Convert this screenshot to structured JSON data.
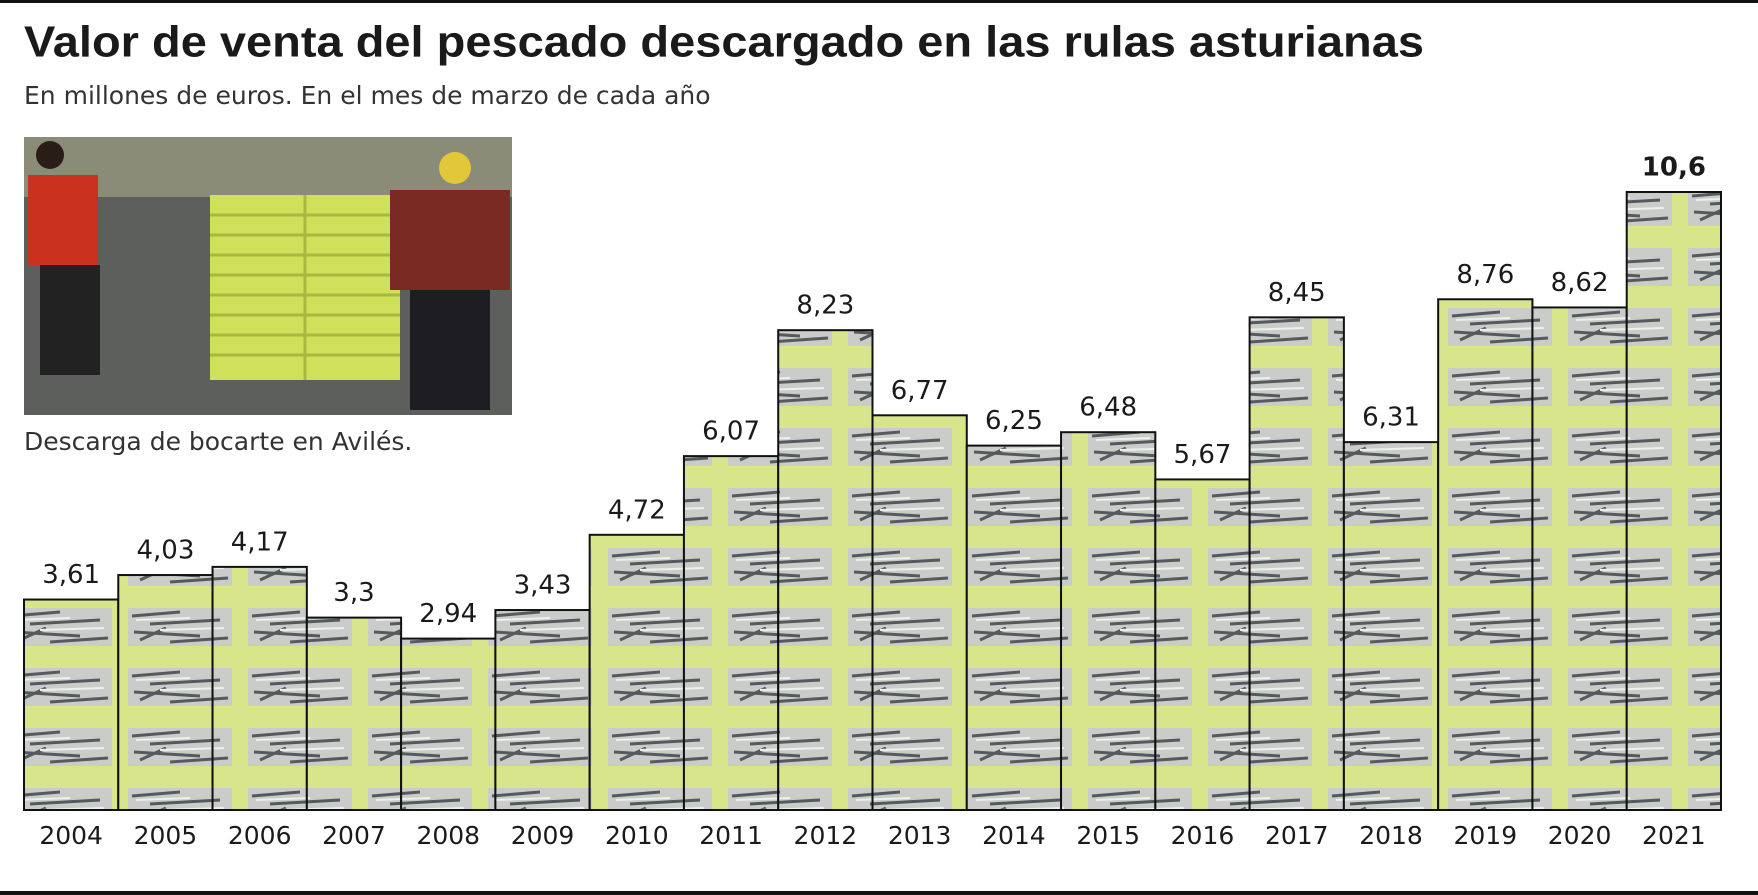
{
  "chart_data": {
    "type": "bar",
    "title": "Valor de venta del pescado descargado en las rulas asturianas",
    "subtitle": "En millones de euros. En el mes de marzo de cada año",
    "caption": "Descarga de bocarte en Avilés.",
    "categories": [
      "2004",
      "2005",
      "2006",
      "2007",
      "2008",
      "2009",
      "2010",
      "2011",
      "2012",
      "2013",
      "2014",
      "2015",
      "2016",
      "2017",
      "2018",
      "2019",
      "2020",
      "2021"
    ],
    "values": [
      3.61,
      4.03,
      4.17,
      3.3,
      2.94,
      3.43,
      4.72,
      6.07,
      8.23,
      6.77,
      6.25,
      6.48,
      5.67,
      8.45,
      6.31,
      8.76,
      8.62,
      10.6
    ],
    "value_labels": [
      "3,61",
      "4,03",
      "4,17",
      "3,3",
      "2,94",
      "3,43",
      "4,72",
      "6,07",
      "8,23",
      "6,77",
      "6,25",
      "6,48",
      "5,67",
      "8,45",
      "6,31",
      "8,76",
      "8,62",
      "10,6"
    ],
    "ylim": [
      0,
      10.6
    ],
    "color": "#d8e58a"
  }
}
